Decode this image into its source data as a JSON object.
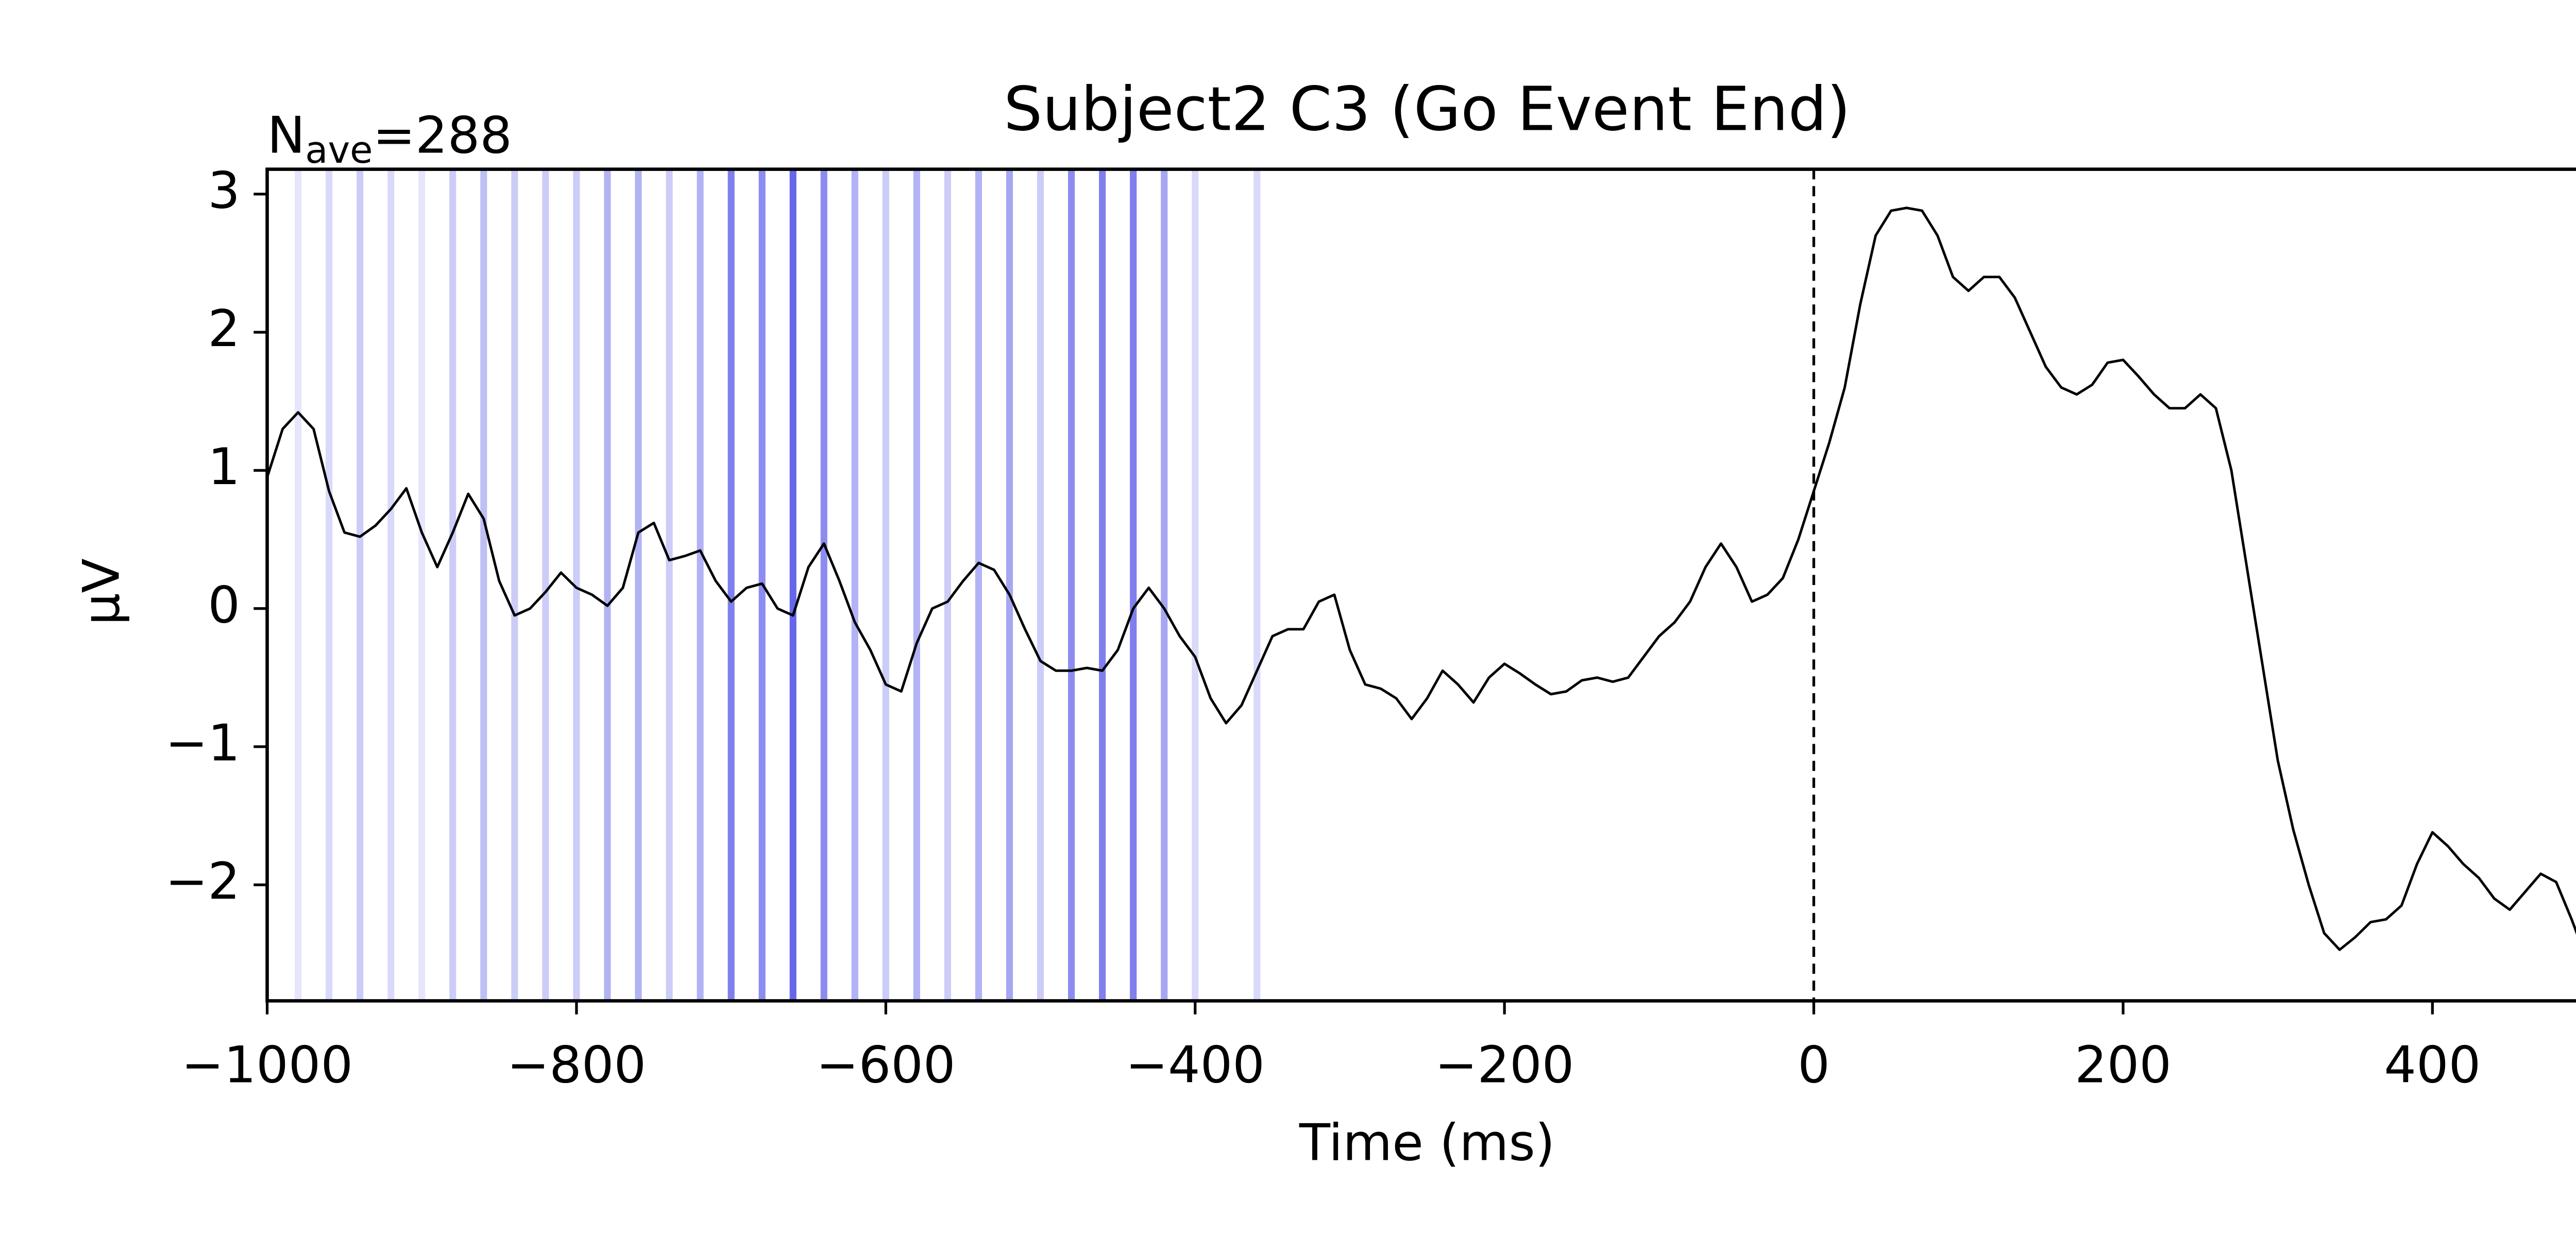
{
  "chart_data": {
    "type": "line",
    "title": "Subject2 C3 (Go Event End)",
    "annotation": [
      "N",
      "ave",
      "=288"
    ],
    "xlabel": "Time (ms)",
    "ylabel": "µV",
    "xlim": [
      -1000,
      500
    ],
    "ylim": [
      -2.84,
      3.18
    ],
    "xticks": [
      {
        "value": -1000,
        "label": "−1000"
      },
      {
        "value": -800,
        "label": "−800"
      },
      {
        "value": -600,
        "label": "−600"
      },
      {
        "value": -400,
        "label": "−400"
      },
      {
        "value": -200,
        "label": "−200"
      },
      0,
      200,
      400
    ],
    "yticks": [
      {
        "value": -2,
        "label": "−2"
      },
      {
        "value": -1,
        "label": "−1"
      },
      0,
      1,
      2,
      3
    ],
    "vline": 0,
    "event_lines": {
      "color": "#0000dd",
      "x": [
        -980,
        -960,
        -940,
        -920,
        -900,
        -880,
        -860,
        -840,
        -820,
        -800,
        -780,
        -760,
        -740,
        -720,
        -700,
        -680,
        -660,
        -640,
        -620,
        -600,
        -580,
        -560,
        -540,
        -520,
        -500,
        -480,
        -460,
        -440,
        -420,
        -400,
        -360
      ],
      "opacity": [
        0.1,
        0.15,
        0.2,
        0.15,
        0.1,
        0.2,
        0.25,
        0.2,
        0.2,
        0.2,
        0.3,
        0.3,
        0.2,
        0.3,
        0.5,
        0.45,
        0.6,
        0.45,
        0.3,
        0.2,
        0.3,
        0.2,
        0.3,
        0.35,
        0.2,
        0.45,
        0.5,
        0.5,
        0.35,
        0.15,
        0.15
      ]
    },
    "x": [
      -1000,
      -990,
      -980,
      -970,
      -960,
      -950,
      -940,
      -930,
      -920,
      -910,
      -900,
      -890,
      -880,
      -870,
      -860,
      -850,
      -840,
      -830,
      -820,
      -810,
      -800,
      -790,
      -780,
      -770,
      -760,
      -750,
      -740,
      -730,
      -720,
      -710,
      -700,
      -690,
      -680,
      -670,
      -660,
      -650,
      -640,
      -630,
      -620,
      -610,
      -600,
      -590,
      -580,
      -570,
      -560,
      -550,
      -540,
      -530,
      -520,
      -510,
      -500,
      -490,
      -480,
      -470,
      -460,
      -450,
      -440,
      -430,
      -420,
      -410,
      -400,
      -390,
      -380,
      -370,
      -360,
      -350,
      -340,
      -330,
      -320,
      -310,
      -300,
      -290,
      -280,
      -270,
      -260,
      -250,
      -240,
      -230,
      -220,
      -210,
      -200,
      -190,
      -180,
      -170,
      -160,
      -150,
      -140,
      -130,
      -120,
      -110,
      -100,
      -90,
      -80,
      -70,
      -60,
      -50,
      -40,
      -30,
      -20,
      -10,
      0,
      10,
      20,
      30,
      40,
      50,
      60,
      70,
      80,
      90,
      100,
      110,
      120,
      130,
      140,
      150,
      160,
      170,
      180,
      190,
      200,
      210,
      220,
      230,
      240,
      250,
      260,
      270,
      280,
      290,
      300,
      310,
      320,
      330,
      340,
      350,
      360,
      370,
      380,
      390,
      400,
      410,
      420,
      430,
      440,
      450,
      460,
      470,
      480,
      490,
      500
    ],
    "series": [
      {
        "color": "#000000",
        "values": [
          0.95,
          1.3,
          1.42,
          1.3,
          0.85,
          0.55,
          0.52,
          0.6,
          0.72,
          0.87,
          0.55,
          0.3,
          0.55,
          0.83,
          0.65,
          0.2,
          -0.05,
          0.0,
          0.12,
          0.26,
          0.15,
          0.1,
          0.02,
          0.15,
          0.55,
          0.62,
          0.35,
          0.38,
          0.42,
          0.2,
          0.05,
          0.15,
          0.18,
          0.0,
          -0.05,
          0.3,
          0.47,
          0.2,
          -0.1,
          -0.3,
          -0.55,
          -0.6,
          -0.25,
          0.0,
          0.05,
          0.2,
          0.33,
          0.28,
          0.1,
          -0.15,
          -0.38,
          -0.45,
          -0.45,
          -0.43,
          -0.45,
          -0.3,
          0.0,
          0.15,
          0.0,
          -0.2,
          -0.35,
          -0.65,
          -0.83,
          -0.7,
          -0.45,
          -0.2,
          -0.15,
          -0.15,
          0.05,
          0.1,
          -0.3,
          -0.55,
          -0.58,
          -0.65,
          -0.8,
          -0.65,
          -0.45,
          -0.55,
          -0.68,
          -0.5,
          -0.4,
          -0.47,
          -0.55,
          -0.62,
          -0.6,
          -0.52,
          -0.5,
          -0.53,
          -0.5,
          -0.35,
          -0.2,
          -0.1,
          0.05,
          0.3,
          0.47,
          0.3,
          0.05,
          0.1,
          0.22,
          0.5,
          0.85,
          1.2,
          1.6,
          2.2,
          2.7,
          2.88,
          2.9,
          2.88,
          2.7,
          2.4,
          2.3,
          2.4,
          2.4,
          2.25,
          2.0,
          1.75,
          1.6,
          1.55,
          1.62,
          1.78,
          1.8,
          1.68,
          1.55,
          1.45,
          1.45,
          1.55,
          1.45,
          1.0,
          0.3,
          -0.4,
          -1.1,
          -1.6,
          -2.0,
          -2.35,
          -2.47,
          -2.38,
          -2.27,
          -2.25,
          -2.15,
          -1.85,
          -1.62,
          -1.72,
          -1.85,
          -1.95,
          -2.1,
          -2.18,
          -2.05,
          -1.92,
          -1.98,
          -2.25,
          -2.55
        ]
      }
    ]
  }
}
